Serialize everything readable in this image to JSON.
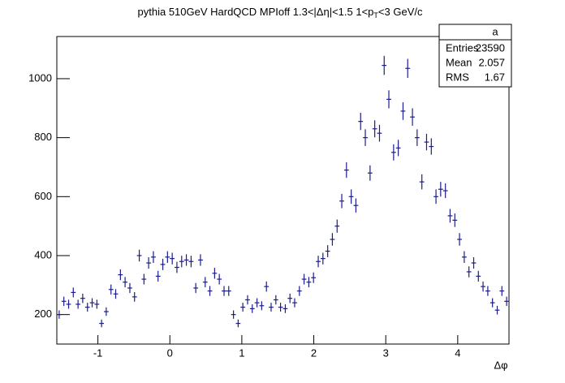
{
  "chart_data": {
    "type": "histogram_points",
    "title": [
      "pythia 510GeV HardQCD MPIoff 1.3<|Δη|<1.5 1<p",
      "T",
      "<3 GeV/c"
    ],
    "x_label": "Δφ",
    "color": "#1c1c8c",
    "xlim": [
      -1.5708,
      4.7124
    ],
    "ylim": [
      100,
      1143
    ],
    "xticks": [
      -1,
      0,
      1,
      2,
      3,
      4
    ],
    "yticks": [
      200,
      400,
      600,
      800,
      1000
    ],
    "x": [
      -1.538,
      -1.473,
      -1.407,
      -1.342,
      -1.276,
      -1.211,
      -1.145,
      -1.08,
      -1.014,
      -0.949,
      -0.884,
      -0.818,
      -0.753,
      -0.687,
      -0.622,
      -0.556,
      -0.491,
      -0.425,
      -0.36,
      -0.295,
      -0.229,
      -0.164,
      -0.098,
      -0.033,
      0.033,
      0.098,
      0.164,
      0.229,
      0.295,
      0.36,
      0.425,
      0.491,
      0.556,
      0.622,
      0.687,
      0.753,
      0.818,
      0.884,
      0.949,
      1.014,
      1.08,
      1.145,
      1.211,
      1.276,
      1.342,
      1.407,
      1.473,
      1.538,
      1.604,
      1.669,
      1.734,
      1.8,
      1.865,
      1.931,
      1.996,
      2.062,
      2.127,
      2.193,
      2.258,
      2.324,
      2.389,
      2.454,
      2.52,
      2.585,
      2.651,
      2.716,
      2.782,
      2.847,
      2.913,
      2.978,
      3.043,
      3.109,
      3.174,
      3.24,
      3.305,
      3.371,
      3.436,
      3.502,
      3.567,
      3.633,
      3.698,
      3.763,
      3.829,
      3.894,
      3.96,
      4.025,
      4.091,
      4.156,
      4.222,
      4.287,
      4.352,
      4.418,
      4.483,
      4.549,
      4.614,
      4.68
    ],
    "values": [
      200,
      245,
      235,
      275,
      235,
      255,
      225,
      240,
      235,
      170,
      210,
      285,
      270,
      335,
      310,
      290,
      260,
      400,
      320,
      375,
      395,
      330,
      370,
      395,
      390,
      360,
      380,
      385,
      380,
      290,
      385,
      310,
      280,
      340,
      320,
      280,
      280,
      200,
      170,
      225,
      250,
      220,
      240,
      230,
      295,
      225,
      250,
      225,
      220,
      255,
      240,
      280,
      320,
      310,
      325,
      380,
      390,
      415,
      455,
      500,
      585,
      690,
      600,
      570,
      855,
      800,
      680,
      830,
      815,
      1045,
      930,
      750,
      765,
      890,
      1035,
      870,
      800,
      650,
      785,
      770,
      600,
      625,
      620,
      535,
      520,
      455,
      395,
      345,
      375,
      330,
      295,
      280,
      240,
      215,
      280,
      245
    ],
    "stats": {
      "title": "a",
      "rows": [
        {
          "label": "Entries",
          "value": 23590
        },
        {
          "label": "Mean",
          "value": 2.057
        },
        {
          "label": "RMS",
          "value": 1.67
        }
      ]
    }
  }
}
